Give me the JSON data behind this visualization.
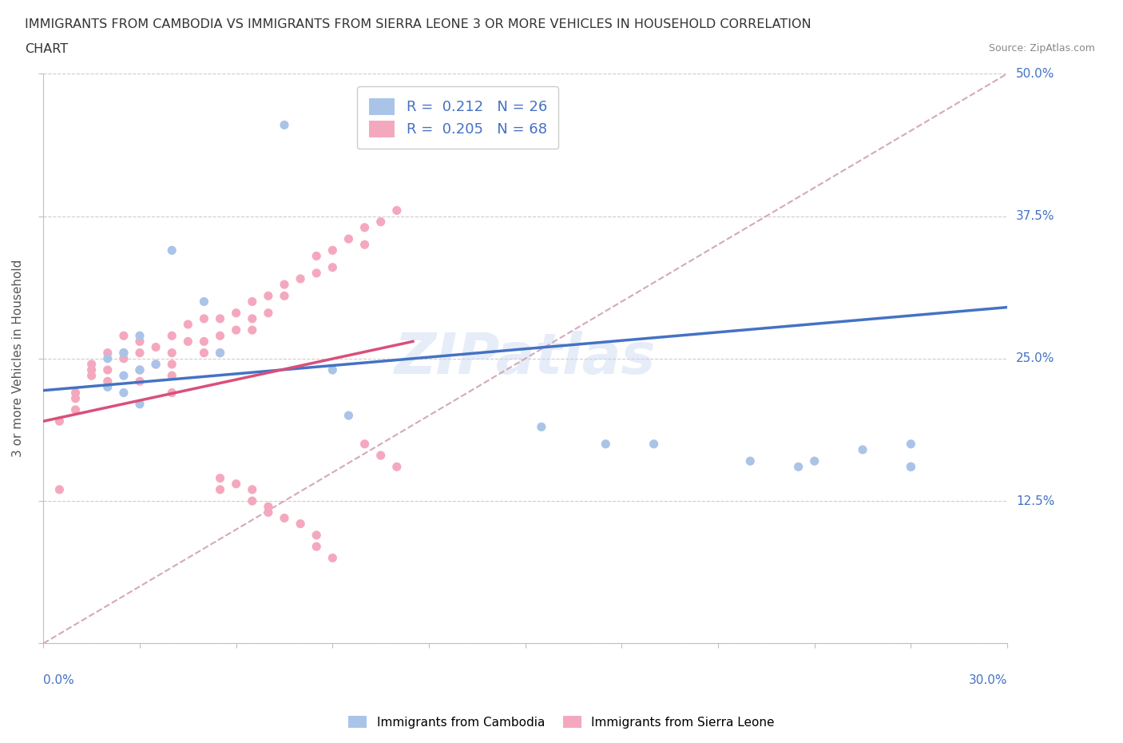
{
  "title_line1": "IMMIGRANTS FROM CAMBODIA VS IMMIGRANTS FROM SIERRA LEONE 3 OR MORE VEHICLES IN HOUSEHOLD CORRELATION",
  "title_line2": "CHART",
  "source": "Source: ZipAtlas.com",
  "watermark": "ZIPatlas",
  "legend_blue_R": "0.212",
  "legend_blue_N": "26",
  "legend_pink_R": "0.205",
  "legend_pink_N": "68",
  "legend_label_blue": "Immigrants from Cambodia",
  "legend_label_pink": "Immigrants from Sierra Leone",
  "blue_color": "#aac4e8",
  "pink_color": "#f4a8be",
  "blue_line_color": "#4472c4",
  "pink_line_color": "#d94f7a",
  "trendline_color": "#d0a0b0",
  "xlim": [
    0.0,
    0.3
  ],
  "ylim": [
    0.0,
    0.5
  ],
  "blue_scatter_x": [
    0.075,
    0.04,
    0.05,
    0.03,
    0.025,
    0.02,
    0.03,
    0.055,
    0.035,
    0.025,
    0.02,
    0.025,
    0.03,
    0.09,
    0.095,
    0.155,
    0.175,
    0.19,
    0.22,
    0.235,
    0.24,
    0.255,
    0.27,
    0.27,
    0.27
  ],
  "blue_scatter_y": [
    0.455,
    0.345,
    0.3,
    0.27,
    0.255,
    0.25,
    0.24,
    0.255,
    0.245,
    0.235,
    0.225,
    0.22,
    0.21,
    0.24,
    0.2,
    0.19,
    0.175,
    0.175,
    0.16,
    0.155,
    0.16,
    0.17,
    0.175,
    0.155,
    0.155
  ],
  "pink_scatter_x": [
    0.005,
    0.005,
    0.01,
    0.01,
    0.01,
    0.015,
    0.015,
    0.015,
    0.02,
    0.02,
    0.02,
    0.025,
    0.025,
    0.025,
    0.03,
    0.03,
    0.03,
    0.03,
    0.035,
    0.035,
    0.04,
    0.04,
    0.04,
    0.04,
    0.04,
    0.045,
    0.045,
    0.05,
    0.05,
    0.05,
    0.055,
    0.055,
    0.055,
    0.06,
    0.06,
    0.065,
    0.065,
    0.065,
    0.07,
    0.07,
    0.075,
    0.075,
    0.08,
    0.085,
    0.085,
    0.09,
    0.09,
    0.095,
    0.1,
    0.1,
    0.105,
    0.11,
    0.1,
    0.105,
    0.11,
    0.055,
    0.055,
    0.06,
    0.065,
    0.065,
    0.07,
    0.07,
    0.075,
    0.08,
    0.085,
    0.085,
    0.09
  ],
  "pink_scatter_y": [
    0.195,
    0.135,
    0.22,
    0.215,
    0.205,
    0.245,
    0.24,
    0.235,
    0.255,
    0.24,
    0.23,
    0.27,
    0.255,
    0.25,
    0.265,
    0.255,
    0.24,
    0.23,
    0.26,
    0.245,
    0.27,
    0.255,
    0.245,
    0.235,
    0.22,
    0.28,
    0.265,
    0.285,
    0.265,
    0.255,
    0.285,
    0.27,
    0.255,
    0.29,
    0.275,
    0.3,
    0.285,
    0.275,
    0.305,
    0.29,
    0.315,
    0.305,
    0.32,
    0.34,
    0.325,
    0.345,
    0.33,
    0.355,
    0.365,
    0.35,
    0.37,
    0.38,
    0.175,
    0.165,
    0.155,
    0.145,
    0.135,
    0.14,
    0.135,
    0.125,
    0.12,
    0.115,
    0.11,
    0.105,
    0.095,
    0.085,
    0.075
  ],
  "blue_trendline_x0": 0.0,
  "blue_trendline_y0": 0.222,
  "blue_trendline_x1": 0.3,
  "blue_trendline_y1": 0.295,
  "pink_trendline_x0": 0.0,
  "pink_trendline_y0": 0.195,
  "pink_trendline_x1": 0.115,
  "pink_trendline_y1": 0.265,
  "gray_trendline_x0": 0.0,
  "gray_trendline_y0": 0.0,
  "gray_trendline_x1": 0.3,
  "gray_trendline_y1": 0.5
}
